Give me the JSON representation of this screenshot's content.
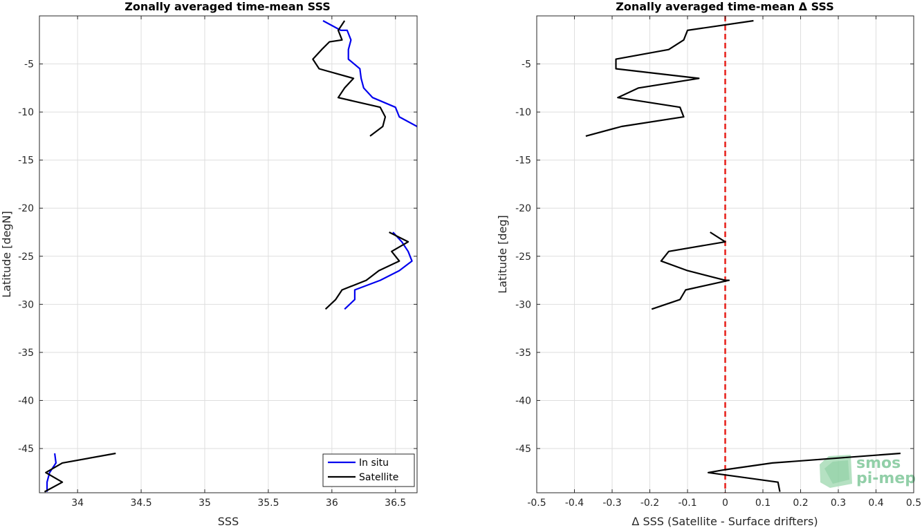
{
  "chart_data": [
    {
      "type": "line",
      "title": "Zonally averaged time-mean SSS",
      "xlabel": "SSS",
      "ylabel": "Latitude [degN]",
      "xlim": [
        33.7,
        36.67
      ],
      "ylim": [
        -49.6,
        0
      ],
      "xticks": [
        34,
        34.5,
        35,
        35.5,
        36,
        36.5
      ],
      "yticks": [
        -5,
        -10,
        -15,
        -20,
        -25,
        -30,
        -35,
        -40,
        -45
      ],
      "grid": true,
      "legend": {
        "placement": "bottom-right"
      },
      "series": [
        {
          "name": "In situ",
          "color": "#0000ee",
          "segments": [
            [
              [
                35.93,
                -0.5
              ],
              [
                36.07,
                -1.5
              ],
              [
                36.12,
                -1.5
              ],
              [
                36.15,
                -2.5
              ],
              [
                36.13,
                -3.5
              ],
              [
                36.13,
                -4.5
              ],
              [
                36.22,
                -5.5
              ],
              [
                36.23,
                -6.5
              ],
              [
                36.25,
                -7.5
              ],
              [
                36.32,
                -8.5
              ],
              [
                36.5,
                -9.5
              ],
              [
                36.53,
                -10.5
              ],
              [
                36.67,
                -11.5
              ],
              [
                36.7,
                -12.5
              ]
            ],
            [
              [
                36.48,
                -22.5
              ],
              [
                36.55,
                -23.5
              ],
              [
                36.6,
                -24.5
              ],
              [
                36.63,
                -25.5
              ],
              [
                36.53,
                -26.5
              ],
              [
                36.38,
                -27.5
              ],
              [
                36.18,
                -28.5
              ],
              [
                36.18,
                -29.5
              ],
              [
                36.1,
                -30.5
              ]
            ],
            [
              [
                33.82,
                -45.5
              ],
              [
                33.83,
                -46.5
              ],
              [
                33.78,
                -47.5
              ],
              [
                33.76,
                -48.5
              ],
              [
                33.76,
                -49.5
              ]
            ]
          ]
        },
        {
          "name": "Satellite",
          "color": "#000000",
          "segments": [
            [
              [
                36.1,
                -0.5
              ],
              [
                36.05,
                -1.5
              ],
              [
                36.08,
                -2.5
              ],
              [
                35.98,
                -2.7
              ],
              [
                35.92,
                -3.5
              ],
              [
                35.85,
                -4.5
              ],
              [
                35.9,
                -5.5
              ],
              [
                36.17,
                -6.5
              ],
              [
                36.1,
                -7.5
              ],
              [
                36.05,
                -8.5
              ],
              [
                36.38,
                -9.5
              ],
              [
                36.42,
                -10.5
              ],
              [
                36.4,
                -11.5
              ],
              [
                36.3,
                -12.5
              ]
            ],
            [
              [
                36.45,
                -22.5
              ],
              [
                36.6,
                -23.5
              ],
              [
                36.47,
                -24.5
              ],
              [
                36.53,
                -25.5
              ],
              [
                36.37,
                -26.5
              ],
              [
                36.27,
                -27.5
              ],
              [
                36.08,
                -28.5
              ],
              [
                36.03,
                -29.5
              ],
              [
                35.95,
                -30.5
              ]
            ],
            [
              [
                34.3,
                -45.5
              ],
              [
                33.88,
                -46.5
              ],
              [
                33.75,
                -47.5
              ],
              [
                33.88,
                -48.5
              ],
              [
                33.74,
                -49.5
              ]
            ]
          ]
        }
      ]
    },
    {
      "type": "line",
      "title": "Zonally averaged time-mean Δ SSS",
      "xlabel": "Δ SSS (Satellite - Surface drifters)",
      "ylabel": "Latitude [deg]",
      "xlim": [
        -0.5,
        0.5
      ],
      "ylim": [
        -49.6,
        0
      ],
      "xticks": [
        -0.5,
        -0.4,
        -0.3,
        -0.2,
        -0.1,
        0,
        0.1,
        0.2,
        0.3,
        0.4,
        0.5
      ],
      "yticks": [
        -5,
        -10,
        -15,
        -20,
        -25,
        -30,
        -35,
        -40,
        -45
      ],
      "grid": true,
      "reference_line": {
        "x": 0,
        "color": "#e8251f",
        "style": "dashed"
      },
      "series": [
        {
          "color": "#000000",
          "segments": [
            [
              [
                0.075,
                -0.5
              ],
              [
                -0.1,
                -1.5
              ],
              [
                -0.11,
                -2.5
              ],
              [
                -0.15,
                -3.5
              ],
              [
                -0.29,
                -4.5
              ],
              [
                -0.29,
                -5.5
              ],
              [
                -0.07,
                -6.5
              ],
              [
                -0.23,
                -7.5
              ],
              [
                -0.285,
                -8.5
              ],
              [
                -0.12,
                -9.5
              ],
              [
                -0.11,
                -10.5
              ],
              [
                -0.275,
                -11.5
              ],
              [
                -0.37,
                -12.5
              ]
            ],
            [
              [
                -0.04,
                -22.5
              ],
              [
                0.0,
                -23.5
              ],
              [
                -0.15,
                -24.5
              ],
              [
                -0.17,
                -25.5
              ],
              [
                -0.1,
                -26.5
              ],
              [
                0.0,
                -27.5
              ],
              [
                0.01,
                -27.5
              ],
              [
                -0.105,
                -28.5
              ],
              [
                -0.12,
                -29.5
              ],
              [
                -0.195,
                -30.5
              ]
            ],
            [
              [
                0.465,
                -45.5
              ],
              [
                0.125,
                -46.5
              ],
              [
                0.0,
                -47.2
              ],
              [
                -0.045,
                -47.5
              ],
              [
                0.14,
                -48.5
              ],
              [
                0.145,
                -49.5
              ]
            ]
          ]
        }
      ]
    }
  ],
  "logo": {
    "line1": "smos",
    "line2": "pi-mep"
  }
}
